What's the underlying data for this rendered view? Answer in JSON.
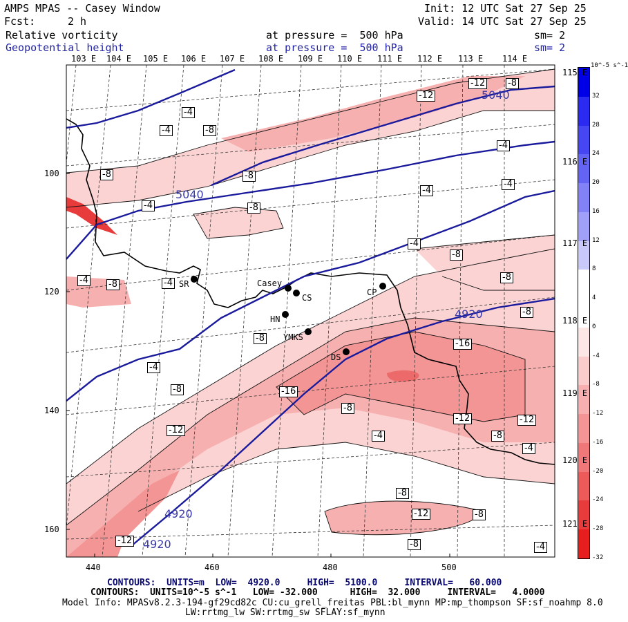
{
  "header": {
    "title": "AMPS MPAS -- Casey Window",
    "init": "Init: 12 UTC Sat 27 Sep 25",
    "fcst_label": "Fcst:",
    "fcst_value": "2 h",
    "valid": "Valid: 14 UTC Sat 27 Sep 25",
    "field1": "Relative vorticity",
    "field1_pressure": "at pressure =  500 hPa",
    "field1_sm": "sm= 2",
    "field2": "Geopotential height",
    "field2_pressure": "at pressure =  500 hPa",
    "field2_sm": "sm= 2"
  },
  "lon_top": [
    "103 E",
    "104 E",
    "105 E",
    "106 E",
    "107 E",
    "108 E",
    "109 E",
    "110 E",
    "111 E",
    "112 E",
    "113 E",
    "114 E"
  ],
  "lon_right": [
    "115 E",
    "116 E",
    "117 E",
    "118 E",
    "119 E",
    "120 E",
    "121 E"
  ],
  "y_ticks": [
    "100",
    "120",
    "140",
    "160"
  ],
  "x_ticks": [
    "440",
    "460",
    "480",
    "500"
  ],
  "stations": [
    {
      "name": "SR"
    },
    {
      "name": "Casey"
    },
    {
      "name": "CS"
    },
    {
      "name": "CP"
    },
    {
      "name": "HN"
    },
    {
      "name": "YMKS"
    },
    {
      "name": "DS"
    }
  ],
  "contour_labels": [
    "-12",
    "-8",
    "-12",
    "5040",
    "-4",
    "-4",
    "-8",
    "-4",
    "-8",
    "-8",
    "-4",
    "-4",
    "5040",
    "-4",
    "-8",
    "-4",
    "-4",
    "-8",
    "-4",
    "-8",
    "-8",
    "4920",
    "-8",
    "-8",
    "-16",
    "-4",
    "-8",
    "-16",
    "-8",
    "-12",
    "-12",
    "-12",
    "-8",
    "-4",
    "-4",
    "4920",
    "-12",
    "-8",
    "-12",
    "-8",
    "-4",
    "4920"
  ],
  "colorbar": {
    "units": "10^-5 s^-1",
    "labels": [
      "32",
      "28",
      "24",
      "20",
      "16",
      "12",
      "8",
      "4",
      "0",
      "-4",
      "-8",
      "-12",
      "-16",
      "-20",
      "-24",
      "-28",
      "-32"
    ],
    "colors": [
      "#0000e6",
      "#2a2af0",
      "#4646f2",
      "#6464f4",
      "#8282f6",
      "#a0a0f8",
      "#c8c8fb",
      "#ffffff",
      "#ffffff",
      "#fde6e6",
      "#fbcccc",
      "#f8afaf",
      "#f49494",
      "#f07878",
      "#ec5a5a",
      "#e83b3b",
      "#e61e1e"
    ],
    "positive_color": "#0000e6",
    "negative_color": "#e61e1e"
  },
  "footer": {
    "line1": "CONTOURS:  UNITS=m  LOW=  4920.0     HIGH=  5100.0     INTERVAL=   60.000",
    "line2": "CONTOURS:  UNITS=10^-5 s^-1   LOW= -32.000      HIGH=  32.000     INTERVAL=   4.0000",
    "line3": "Model Info: MPASv8.2.3-194-gf29cd82c CU:cu_grell_freitas PBL:bl_mynn MP:mp_thompson SF:sf_noahmp 8.0",
    "line4": "LW:rrtmg_lw SW:rrtmg_sw SFLAY:sf_mynn"
  }
}
